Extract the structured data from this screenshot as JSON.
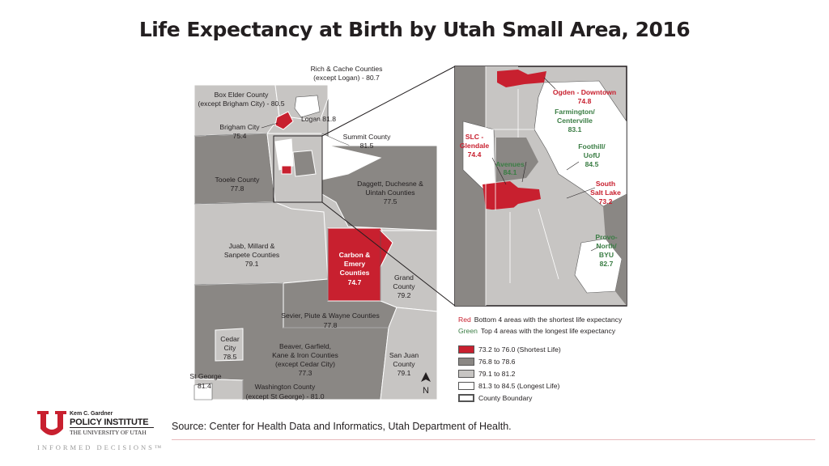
{
  "title": "Life Expectancy at Birth by Utah Small Area, 2016",
  "source": "Source: Center for Health Data and Informatics, Utah Department of Health.",
  "logo": {
    "line1": "Kem C. Gardner",
    "line2": "POLICY INSTITUTE",
    "line3": "THE UNIVERSITY OF UTAH",
    "tagline": "INFORMED DECISIONS™",
    "color": "#c8202f"
  },
  "colors": {
    "shortest": "#c8202f",
    "dark_gray": "#8a8784",
    "light_gray": "#c7c5c3",
    "longest": "#ffffff",
    "boundary": "#555555"
  },
  "legend": {
    "red_word": "Red",
    "red_text": "Bottom 4 areas with the shortest life expectancy",
    "green_word": "Green",
    "green_text": "Top 4 areas with the longest life expectancy",
    "items": [
      {
        "label": "73.2 to 76.0 (Shortest Life)",
        "color": "#c8202f"
      },
      {
        "label": "76.8 to 78.6",
        "color": "#8a8784"
      },
      {
        "label": "79.1 to 81.2",
        "color": "#c7c5c3"
      },
      {
        "label": "81.3 to 84.5 (Longest Life)",
        "color": "#ffffff"
      },
      {
        "label": "County Boundary",
        "color": "#ffffff"
      }
    ]
  },
  "map_labels": {
    "rich_cache": [
      "Rich & Cache Counties",
      "(except Logan) - 80.7"
    ],
    "box_elder": [
      "Box Elder County",
      "(except Brigham City) - 80.5"
    ],
    "logan": [
      "Logan 81.8"
    ],
    "brigham": [
      "Brigham City",
      "75.4"
    ],
    "summit": [
      "Summit County",
      "81.5"
    ],
    "tooele": [
      "Tooele County",
      "77.8"
    ],
    "daggett": [
      "Daggett, Duchesne &",
      "Uintah Counties",
      "77.5"
    ],
    "juab": [
      "Juab, Millard &",
      "Sanpete Counties",
      "79.1"
    ],
    "carbon": [
      "Carbon &",
      "Emery",
      "Counties",
      "74.7"
    ],
    "grand": [
      "Grand",
      "County",
      "79.2"
    ],
    "sevier": [
      "Sevier, Piute & Wayne Counties",
      "77.8"
    ],
    "cedar": [
      "Cedar",
      "City",
      "78.5"
    ],
    "beaver": [
      "Beaver, Garfield,",
      "Kane & Iron Counties",
      "(except Cedar City)",
      "77.3"
    ],
    "san_juan": [
      "San Juan",
      "County",
      "79.1"
    ],
    "st_george": [
      "St George",
      "81.4"
    ],
    "washington": [
      "Washington County",
      "(except St George) - 81.0"
    ],
    "north": "N"
  },
  "inset_labels": {
    "ogden": [
      "Ogden - Downtown",
      "74.8"
    ],
    "farmington": [
      "Farmington/",
      "Centerville",
      "83.1"
    ],
    "slc": [
      "SLC -",
      "Glendale",
      "74.4"
    ],
    "foothill": [
      "Foothill/",
      "UofU",
      "84.5"
    ],
    "avenues": [
      "Avenues",
      "84.1"
    ],
    "south_salt_lake": [
      "South",
      "Salt Lake",
      "73.2"
    ],
    "provo": [
      "Provo-",
      "North/",
      "BYU",
      "82.7"
    ]
  }
}
